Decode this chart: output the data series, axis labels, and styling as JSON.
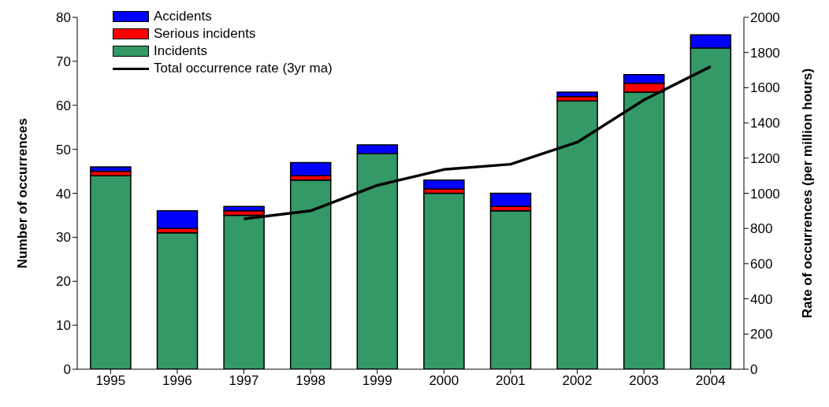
{
  "chart_data": {
    "type": "bar",
    "stacked": true,
    "categories": [
      "1995",
      "1996",
      "1997",
      "1998",
      "1999",
      "2000",
      "2001",
      "2002",
      "2003",
      "2004"
    ],
    "series": [
      {
        "name": "Incidents",
        "color": "#339966",
        "values": [
          44,
          31,
          35,
          43,
          49,
          40,
          36,
          61,
          63,
          73
        ]
      },
      {
        "name": "Serious incidents",
        "color": "#ff0000",
        "values": [
          1,
          1,
          1,
          1,
          0,
          1,
          1,
          1,
          2,
          0
        ]
      },
      {
        "name": "Accidents",
        "color": "#0000ff",
        "values": [
          1,
          4,
          1,
          3,
          2,
          2,
          3,
          1,
          2,
          3
        ]
      },
      {
        "name": "Total occurrence rate (3yr ma)",
        "type": "line",
        "axis": "y2",
        "color": "#000000",
        "values": [
          null,
          null,
          855,
          900,
          1045,
          1135,
          1165,
          1290,
          1530,
          1720
        ]
      }
    ],
    "ylabel": "Number of occurrences",
    "y2label": "Rate of occurrences (per million hours)",
    "ylim": [
      0,
      80
    ],
    "yticks": [
      0,
      10,
      20,
      30,
      40,
      50,
      60,
      70,
      80
    ],
    "y2lim": [
      0,
      2000
    ],
    "y2ticks": [
      0,
      200,
      400,
      600,
      800,
      1000,
      1200,
      1400,
      1600,
      1800,
      2000
    ],
    "legend": "top left",
    "grid": false,
    "marker": "none"
  }
}
